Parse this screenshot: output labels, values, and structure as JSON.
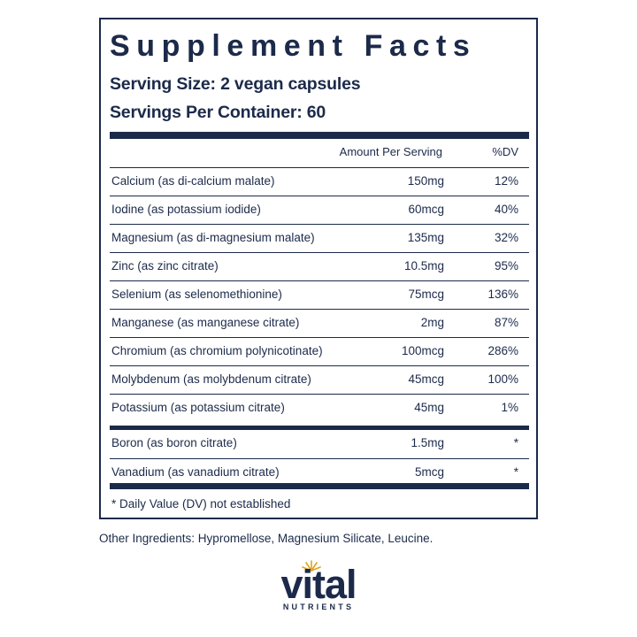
{
  "label": {
    "title": "Supplement Facts",
    "serving_size": "Serving Size: 2 vegan capsules",
    "servings_per_container": "Servings Per Container: 60",
    "header_amount": "Amount Per Serving",
    "header_dv": "%DV",
    "rows": [
      {
        "name": "Calcium (as di-calcium malate)",
        "amount": "150mg",
        "dv": "12%"
      },
      {
        "name": "Iodine (as potassium iodide)",
        "amount": "60mcg",
        "dv": "40%"
      },
      {
        "name": "Magnesium (as di-magnesium malate)",
        "amount": "135mg",
        "dv": "32%"
      },
      {
        "name": "Zinc (as zinc citrate)",
        "amount": "10.5mg",
        "dv": "95%"
      },
      {
        "name": "Selenium (as selenomethionine)",
        "amount": "75mcg",
        "dv": "136%"
      },
      {
        "name": "Manganese (as manganese citrate)",
        "amount": "2mg",
        "dv": "87%"
      },
      {
        "name": "Chromium (as chromium polynicotinate)",
        "amount": "100mcg",
        "dv": "286%"
      },
      {
        "name": "Molybdenum (as molybdenum citrate)",
        "amount": "45mcg",
        "dv": "100%"
      },
      {
        "name": "Potassium (as potassium citrate)",
        "amount": "45mg",
        "dv": "1%"
      },
      {
        "name": "Boron (as boron citrate)",
        "amount": "1.5mg",
        "dv": "*"
      },
      {
        "name": "Vanadium (as vanadium citrate)",
        "amount": "5mcg",
        "dv": "*"
      }
    ],
    "footnote": "* Daily Value (DV) not established"
  },
  "other_ingredients": "Other Ingredients: Hypromellose, Magnesium Silicate, Leucine.",
  "logo": {
    "word": "vital",
    "sub": "NUTRIENTS",
    "accent_color": "#e0a31c"
  },
  "colors": {
    "text": "#1c2a4a"
  }
}
